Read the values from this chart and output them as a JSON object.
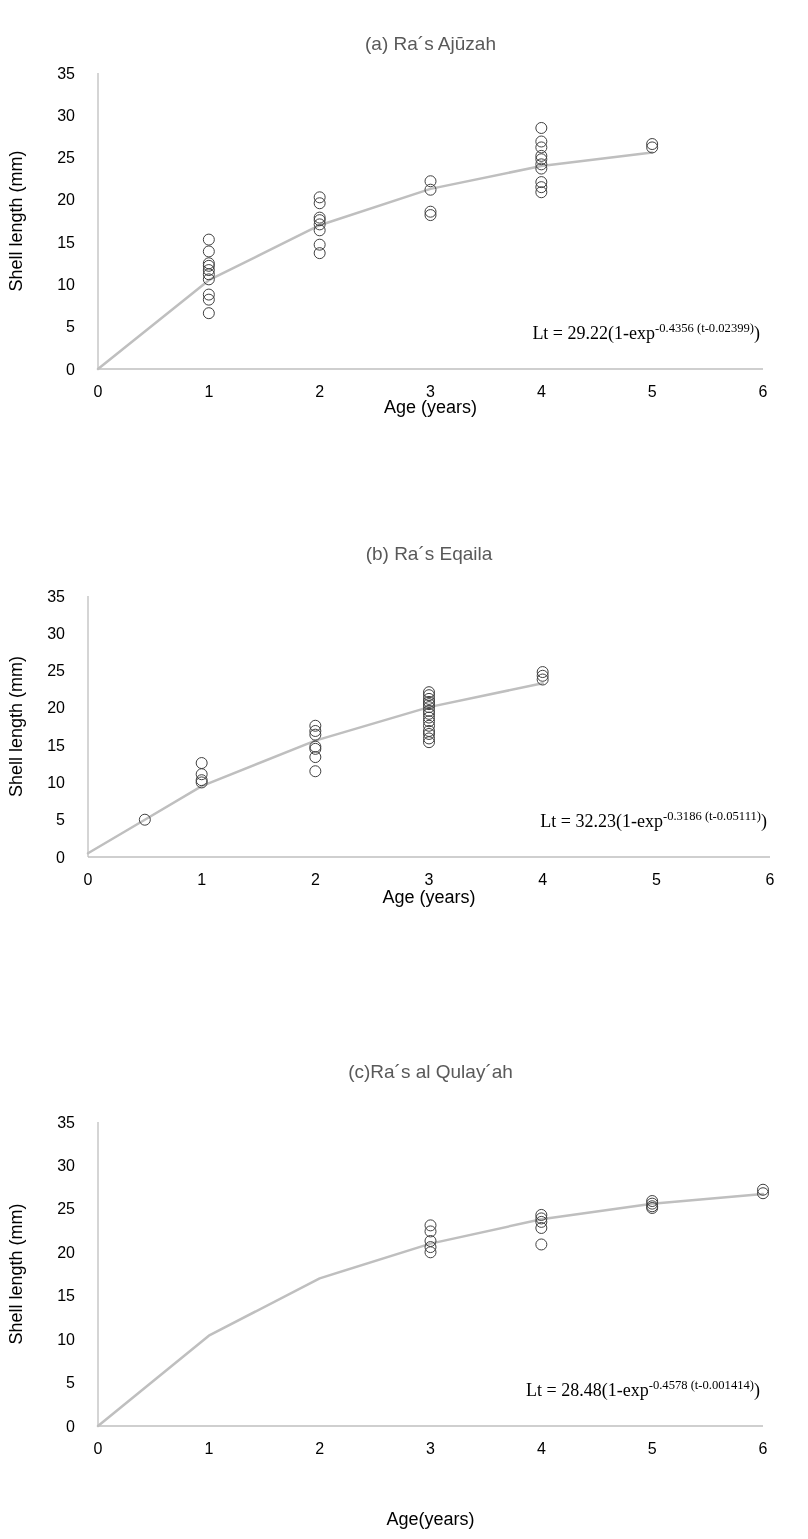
{
  "chart_data": [
    {
      "type": "scatter",
      "title": "(a) Ra´s Ajūzah",
      "xlabel": "Age (years)",
      "ylabel": "Shell length (mm)",
      "xlim": [
        0,
        6
      ],
      "xticks": [
        0,
        1,
        2,
        3,
        4,
        5,
        6
      ],
      "ylim": [
        0,
        35
      ],
      "yticks": [
        0,
        5,
        10,
        15,
        20,
        25,
        30,
        35
      ],
      "grid": false,
      "marker": "circle",
      "annotations": [
        "Lt = 29.22(1-exp$^{-0.4356 (t-0.02399)}$)"
      ],
      "series": [
        {
          "type": "line",
          "color": "#bfbfbf",
          "marker": "none",
          "line_style": "solid",
          "x": [
            0,
            1,
            2,
            3,
            4,
            5
          ],
          "values": [
            0,
            10.5,
            17.0,
            21.3,
            24.0,
            25.6
          ]
        },
        {
          "color": "#404040",
          "x": [
            1,
            1,
            1,
            1,
            1,
            1,
            1,
            1,
            1,
            1,
            2,
            2,
            2,
            2,
            2,
            2,
            2,
            2,
            3,
            3,
            3,
            3,
            4,
            4,
            4,
            4,
            4,
            4,
            4,
            4,
            4,
            4,
            5,
            5
          ],
          "values": [
            15.3,
            13.9,
            12.5,
            12.2,
            11.7,
            11.2,
            10.6,
            8.8,
            8.2,
            6.6,
            20.3,
            19.6,
            17.9,
            17.6,
            17.1,
            16.4,
            14.7,
            13.7,
            22.2,
            21.2,
            18.6,
            18.2,
            28.5,
            26.9,
            26.2,
            25.2,
            24.8,
            24.2,
            23.7,
            22.1,
            21.5,
            20.9,
            26.6,
            26.2
          ]
        }
      ]
    },
    {
      "type": "scatter",
      "title": "(b) Ra´s Eqaila",
      "xlabel": "Age (years)",
      "ylabel": "Shell length (mm)",
      "xlim": [
        0,
        6
      ],
      "xticks": [
        0,
        1,
        2,
        3,
        4,
        5,
        6
      ],
      "ylim": [
        0,
        35
      ],
      "yticks": [
        0,
        5,
        10,
        15,
        20,
        25,
        30,
        35
      ],
      "grid": false,
      "marker": "circle",
      "annotations": [
        "Lt = 32.23(1-exp$^{-0.3186 (t-0.05111)}$)"
      ],
      "series": [
        {
          "type": "line",
          "color": "#bfbfbf",
          "marker": "none",
          "line_style": "solid",
          "x": [
            0,
            0.5,
            1,
            2,
            3,
            4
          ],
          "values": [
            0.5,
            5.0,
            9.5,
            15.6,
            20.1,
            23.3
          ]
        },
        {
          "color": "#404040",
          "x": [
            0.5,
            1,
            1,
            1,
            1,
            2,
            2,
            2,
            2,
            2,
            2,
            2,
            3,
            3,
            3,
            3,
            3,
            3,
            3,
            3,
            3,
            3,
            3,
            3,
            3,
            3,
            3,
            4,
            4,
            4
          ],
          "values": [
            5.0,
            12.6,
            11.1,
            10.3,
            10.0,
            17.6,
            16.9,
            16.4,
            14.8,
            14.5,
            13.4,
            11.5,
            22.1,
            21.7,
            21.2,
            20.8,
            20.5,
            20.1,
            19.6,
            19.2,
            18.7,
            18.2,
            17.6,
            16.9,
            16.5,
            15.9,
            15.4,
            24.8,
            24.3,
            23.8
          ]
        }
      ]
    },
    {
      "type": "scatter",
      "title": "(c)Ra´s al Qulay´ah",
      "xlabel": "Age(years)",
      "ylabel": "Shell length (mm)",
      "xlim": [
        0,
        6
      ],
      "xticks": [
        0,
        1,
        2,
        3,
        4,
        5,
        6
      ],
      "ylim": [
        0,
        35
      ],
      "yticks": [
        0,
        5,
        10,
        15,
        20,
        25,
        30,
        35
      ],
      "grid": false,
      "marker": "circle",
      "annotations": [
        "Lt = 28.48(1-exp$^{-0.4578 (t-0.001414)}$)"
      ],
      "series": [
        {
          "type": "line",
          "color": "#bfbfbf",
          "marker": "none",
          "line_style": "solid",
          "x": [
            0,
            1,
            2,
            3,
            4,
            5,
            6
          ],
          "values": [
            0,
            10.4,
            17.0,
            21.0,
            23.8,
            25.6,
            26.7
          ]
        },
        {
          "color": "#404040",
          "x": [
            3,
            3,
            3,
            3,
            3,
            4,
            4,
            4,
            4,
            4,
            5,
            5,
            5,
            5,
            6,
            6
          ],
          "values": [
            23.1,
            22.4,
            21.3,
            20.6,
            20.0,
            24.3,
            23.9,
            23.5,
            22.8,
            20.9,
            25.9,
            25.6,
            25.3,
            25.1,
            27.2,
            26.8
          ]
        }
      ]
    }
  ]
}
